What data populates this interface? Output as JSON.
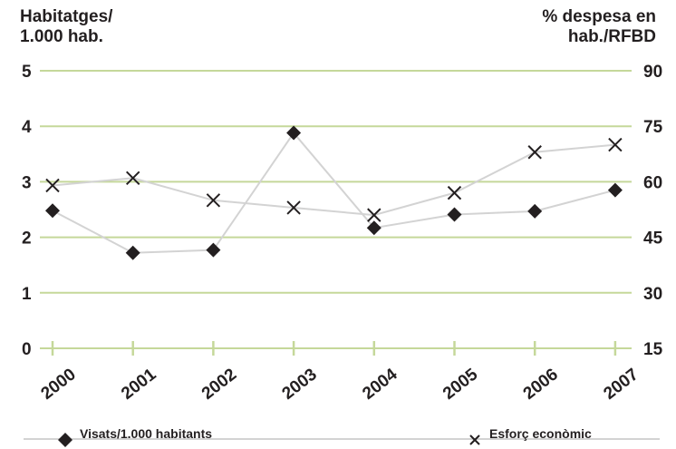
{
  "chart_data": {
    "type": "line",
    "categories": [
      "2000",
      "2001",
      "2002",
      "2003",
      "2004",
      "2005",
      "2006",
      "2007"
    ],
    "ylabel_left": "Habitatges/\n1.000 hab.",
    "ylabel_right": "% despesa en\nhab./RFBD",
    "y_left": {
      "min": 0,
      "max": 5,
      "ticks": [
        "0",
        "1",
        "2",
        "3",
        "4",
        "5"
      ]
    },
    "y_right": {
      "min": 15,
      "max": 90,
      "ticks": [
        "15",
        "30",
        "45",
        "60",
        "75",
        "90"
      ]
    },
    "grid": true,
    "legend_position": "bottom",
    "series": [
      {
        "name": "Visats/1.000 habitants",
        "axis": "left",
        "marker": "diamond",
        "values": [
          2.48,
          1.72,
          1.77,
          3.88,
          2.17,
          2.41,
          2.47,
          2.85
        ]
      },
      {
        "name": "Esforç econòmic",
        "axis": "right",
        "marker": "cross",
        "values": [
          59,
          61,
          55,
          53,
          51,
          57,
          68,
          70
        ]
      }
    ],
    "colors": {
      "grid": "#c5d89a",
      "line": "#d3d3d3",
      "marker": "#231f20",
      "axis": "#c5d89a"
    }
  }
}
